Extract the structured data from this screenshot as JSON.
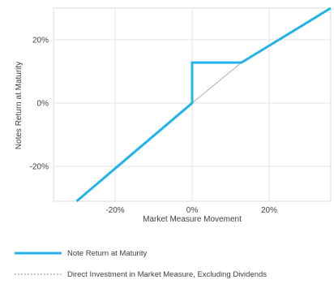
{
  "chart_data": {
    "type": "line",
    "xlabel": "Market Measure Movement",
    "ylabel": "Notes Return at Maturity",
    "xlim": [
      -36,
      36
    ],
    "ylim": [
      -31,
      30
    ],
    "x_ticks": [
      {
        "value": -20,
        "label": "-20%"
      },
      {
        "value": 0,
        "label": "0%"
      },
      {
        "value": 20,
        "label": "20%"
      }
    ],
    "y_ticks": [
      {
        "value": 20,
        "label": "20%"
      },
      {
        "value": 0,
        "label": "0%"
      },
      {
        "value": -20,
        "label": "-20%"
      }
    ],
    "grid": true,
    "legend_position": "bottom",
    "series": [
      {
        "name": "Note Return at Maturity",
        "color": "#22b3ea",
        "style": "solid",
        "x": [
          -30,
          0,
          0,
          12.8,
          36
        ],
        "y": [
          -31,
          0,
          12.8,
          12.8,
          30
        ]
      },
      {
        "name": "Direct Investment in Market Measure, Excluding Dividends",
        "color": "#b0b0b0",
        "style": "dotted",
        "x": [
          0,
          12.8
        ],
        "y": [
          0,
          12.8
        ]
      }
    ]
  }
}
